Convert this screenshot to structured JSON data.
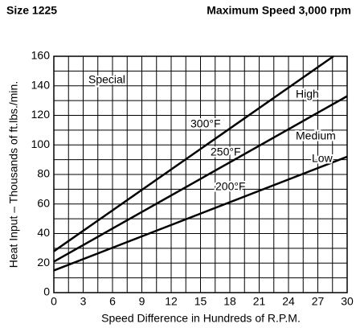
{
  "header": {
    "left": "Size 1225",
    "right": "Maximum Speed 3,000 rpm"
  },
  "chart_data": {
    "type": "line",
    "xlabel": "Speed Difference in Hundreds of R.P.M.",
    "ylabel": "Heat Input – Thousands of ft.lbs./min.",
    "xlim": [
      0,
      30
    ],
    "ylim": [
      0,
      160
    ],
    "xticks": [
      0,
      3,
      6,
      9,
      12,
      15,
      18,
      21,
      24,
      27,
      30
    ],
    "yticks": [
      0,
      20,
      40,
      60,
      80,
      100,
      120,
      140,
      160
    ],
    "grid": true,
    "series": [
      {
        "name": "300°F",
        "color": "#000000",
        "x": [
          0,
          28.6
        ],
        "values": [
          28,
          160
        ]
      },
      {
        "name": "250°F",
        "color": "#000000",
        "x": [
          0,
          30
        ],
        "values": [
          21,
          133
        ]
      },
      {
        "name": "200°F",
        "color": "#000000",
        "x": [
          0,
          30
        ],
        "values": [
          15,
          92
        ]
      }
    ],
    "annotations": [
      "Special",
      "High",
      "Medium",
      "Low"
    ]
  }
}
